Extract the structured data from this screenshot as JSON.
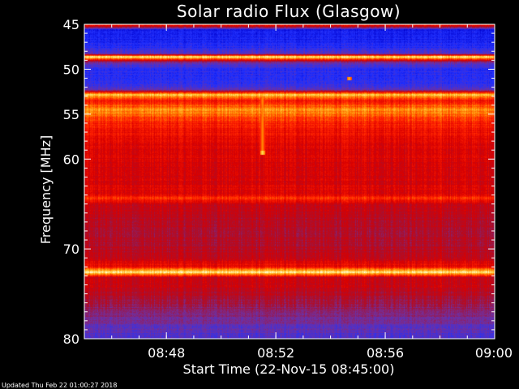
{
  "chart_data": {
    "type": "heatmap",
    "title": "Solar radio Flux (Glasgow)",
    "xlabel": "Start Time (22-Nov-15 08:45:00)",
    "ylabel": "Frequency [MHz]",
    "x_range": [
      "08:45",
      "09:00"
    ],
    "y_range": [
      45,
      80
    ],
    "y_inverted": true,
    "x_ticks": [
      "08:48",
      "08:52",
      "08:56",
      "09:00"
    ],
    "y_ticks": [
      45,
      50,
      55,
      60,
      70,
      80
    ],
    "colormap": [
      "#00004a",
      "#0000cc",
      "#2030ff",
      "#7030a0",
      "#a81030",
      "#d80000",
      "#ff2000",
      "#ff8000",
      "#ffd040",
      "#fffff0"
    ],
    "frequency_profile": [
      {
        "freq": 45.0,
        "level": 0.7
      },
      {
        "freq": 45.6,
        "level": 0.18
      },
      {
        "freq": 47.5,
        "level": 0.22
      },
      {
        "freq": 48.3,
        "level": 0.32
      },
      {
        "freq": 48.6,
        "level": 0.97
      },
      {
        "freq": 49.2,
        "level": 0.35
      },
      {
        "freq": 50.0,
        "level": 0.22
      },
      {
        "freq": 51.5,
        "level": 0.25
      },
      {
        "freq": 52.3,
        "level": 0.3
      },
      {
        "freq": 52.8,
        "level": 0.9
      },
      {
        "freq": 53.5,
        "level": 0.62
      },
      {
        "freq": 54.5,
        "level": 0.8
      },
      {
        "freq": 56.0,
        "level": 0.65
      },
      {
        "freq": 58.0,
        "level": 0.58
      },
      {
        "freq": 61.0,
        "level": 0.55
      },
      {
        "freq": 64.0,
        "level": 0.56
      },
      {
        "freq": 64.3,
        "level": 0.72
      },
      {
        "freq": 65.0,
        "level": 0.52
      },
      {
        "freq": 67.0,
        "level": 0.48
      },
      {
        "freq": 69.0,
        "level": 0.46
      },
      {
        "freq": 71.0,
        "level": 0.5
      },
      {
        "freq": 72.0,
        "level": 0.62
      },
      {
        "freq": 72.6,
        "level": 0.95
      },
      {
        "freq": 73.2,
        "level": 0.5
      },
      {
        "freq": 74.0,
        "level": 0.52
      },
      {
        "freq": 75.5,
        "level": 0.45
      },
      {
        "freq": 77.0,
        "level": 0.38
      },
      {
        "freq": 78.5,
        "level": 0.32
      },
      {
        "freq": 80.0,
        "level": 0.28
      }
    ],
    "events": [
      {
        "time": "08:51:30",
        "freq_start": 52.8,
        "freq_end": 59.3,
        "level": 0.8
      },
      {
        "time": "08:51:30",
        "freq_start": 59.0,
        "freq_end": 59.5,
        "level": 0.92
      },
      {
        "time": "08:54:40",
        "freq_start": 50.8,
        "freq_end": 51.2,
        "level": 0.85
      }
    ],
    "grid": false,
    "legend": "none"
  },
  "footer": "Updated Thu Feb 22 01:00:27 2018"
}
